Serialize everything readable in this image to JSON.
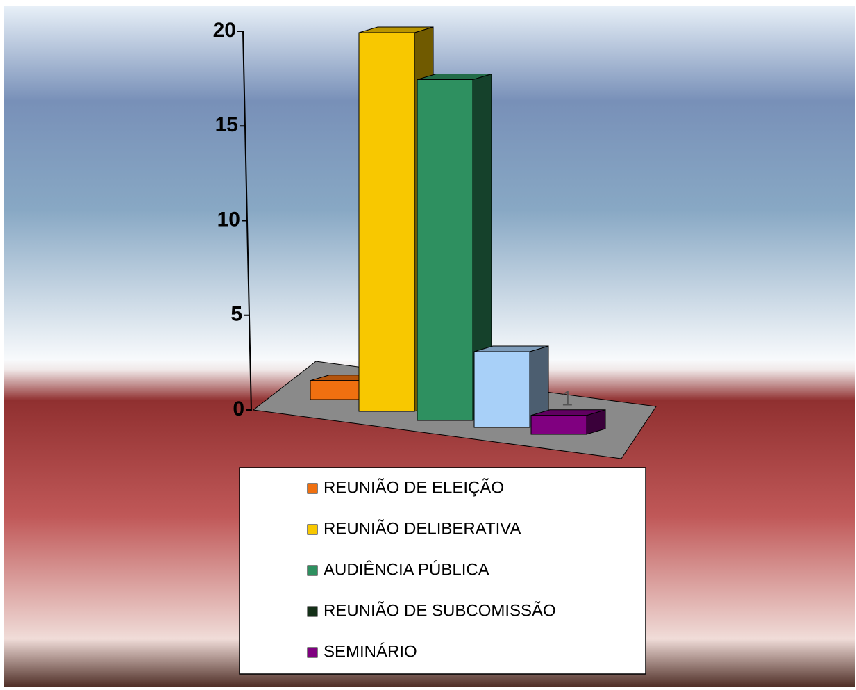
{
  "chart_data": {
    "type": "bar3d",
    "ylim": [
      0,
      20
    ],
    "yticks": [
      0,
      5,
      10,
      15,
      20
    ],
    "series": [
      {
        "name": "REUNIÃO DE ELEIÇÃO",
        "color": "#f07010",
        "values": [
          1
        ]
      },
      {
        "name": "REUNIÃO DELIBERATIVA",
        "color": "#f8c800",
        "values": [
          20
        ]
      },
      {
        "name": "AUDIÊNCIA PÚBLICA",
        "color": "#2e9060",
        "values": [
          18
        ]
      },
      {
        "name": "REUNIÃO DE SUBCOMISSÃO",
        "color": "#a8d0f8",
        "legend_color": "#143018",
        "values": [
          4
        ]
      },
      {
        "name": "SEMINÁRIO",
        "color": "#800080",
        "values": [
          1
        ],
        "show_label": true
      }
    ]
  }
}
